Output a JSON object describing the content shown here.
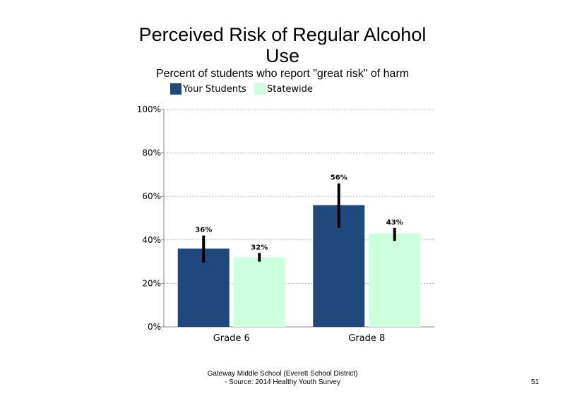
{
  "chart_data": {
    "type": "bar",
    "title": "Perceived Risk of Regular Alcohol Use",
    "subtitle": "Percent of students who report \"great risk\" of harm",
    "categories": [
      "Grade 6",
      "Grade 8"
    ],
    "series": [
      {
        "name": "Your Students",
        "color": "#1F497D",
        "values": [
          36,
          56
        ],
        "labels": [
          "36%",
          "56%"
        ],
        "error_low": [
          29.5,
          45.5
        ],
        "error_high": [
          42,
          66
        ]
      },
      {
        "name": "Statewide",
        "color": "#CCFFDD",
        "values": [
          32,
          43
        ],
        "labels": [
          "32%",
          "43%"
        ],
        "error_low": [
          30,
          39.5
        ],
        "error_high": [
          34,
          45.5
        ]
      }
    ],
    "ylim": [
      0,
      100
    ],
    "yticks": [
      0,
      20,
      40,
      60,
      80,
      100
    ],
    "ytick_labels": [
      "0%",
      "20%",
      "40%",
      "60%",
      "80%",
      "100%"
    ],
    "grid": true,
    "legend_position": "top-left"
  },
  "footer": {
    "line1": "Gateway Middle School (Everett School District)",
    "line2": "- Source: 2014 Healthy Youth Survey"
  },
  "page_number": "51"
}
